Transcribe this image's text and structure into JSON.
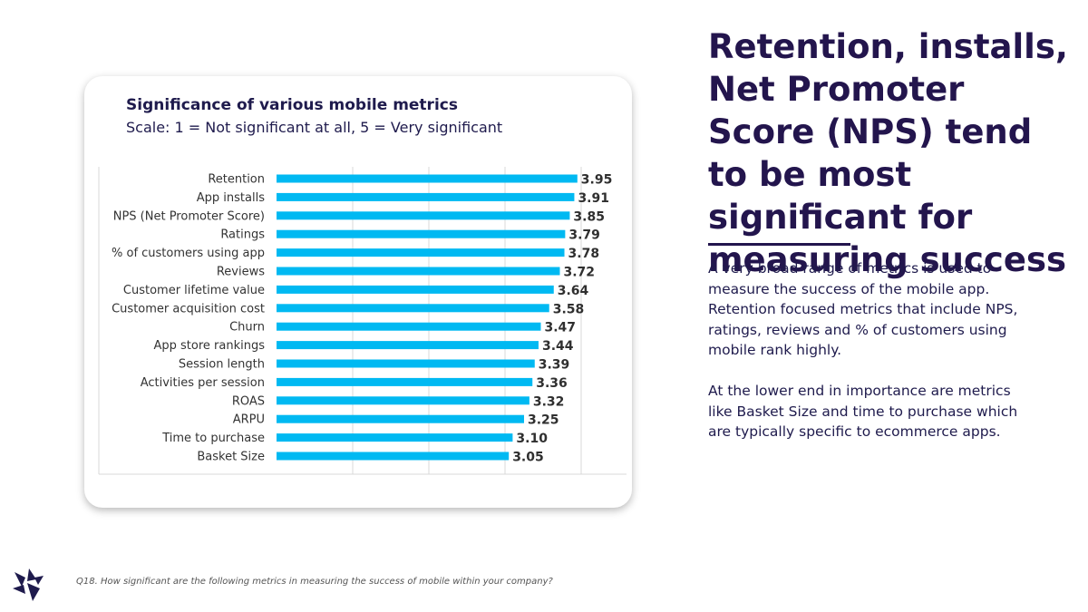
{
  "headline": "Retention, installs, Net Promoter Score (NPS) tend to be most significant for measuring success",
  "body": {
    "paragraph1": "A very broad range of metrics is used to measure the success of the mobile app. Retention focused metrics that include NPS, ratings, reviews and % of customers using mobile rank highly.",
    "paragraph2": "At the lower end in importance are metrics like Basket Size and time to purchase which are typically specific to ecommerce apps."
  },
  "footnote": "Q18. How significant are the following metrics in measuring the success of mobile within your company?",
  "colors": {
    "bar": "#00b9f2",
    "text_dark": "#1f1b4d",
    "label": "#333333",
    "value": "#2f2f2f",
    "gridline": "#d9d9d9"
  },
  "icons": {
    "logo": "company-logo-icon"
  },
  "chart_data": {
    "type": "bar",
    "orientation": "horizontal",
    "title": "Significance of various mobile metrics",
    "subtitle": "Scale: 1 = Not significant at all, 5 = Very significant",
    "categories": [
      "Retention",
      "App installs",
      "NPS (Net Promoter Score)",
      "Ratings",
      "% of customers using app",
      "Reviews",
      "Customer lifetime value",
      "Customer acquisition cost",
      "Churn",
      "App store rankings",
      "Session length",
      "Activities per session",
      "ROAS",
      "ARPU",
      "Time to purchase",
      "Basket Size"
    ],
    "values": [
      3.95,
      3.91,
      3.85,
      3.79,
      3.78,
      3.72,
      3.64,
      3.58,
      3.47,
      3.44,
      3.39,
      3.36,
      3.32,
      3.25,
      3.1,
      3.05
    ],
    "value_labels": [
      "3.95",
      "3.91",
      "3.85",
      "3.79",
      "3.78",
      "3.72",
      "3.64",
      "3.58",
      "3.47",
      "3.44",
      "3.39",
      "3.36",
      "3.32",
      "3.25",
      "3.10",
      "3.05"
    ],
    "xlim": [
      0,
      5
    ],
    "grid": true,
    "legend": "none",
    "data_labels": true
  }
}
